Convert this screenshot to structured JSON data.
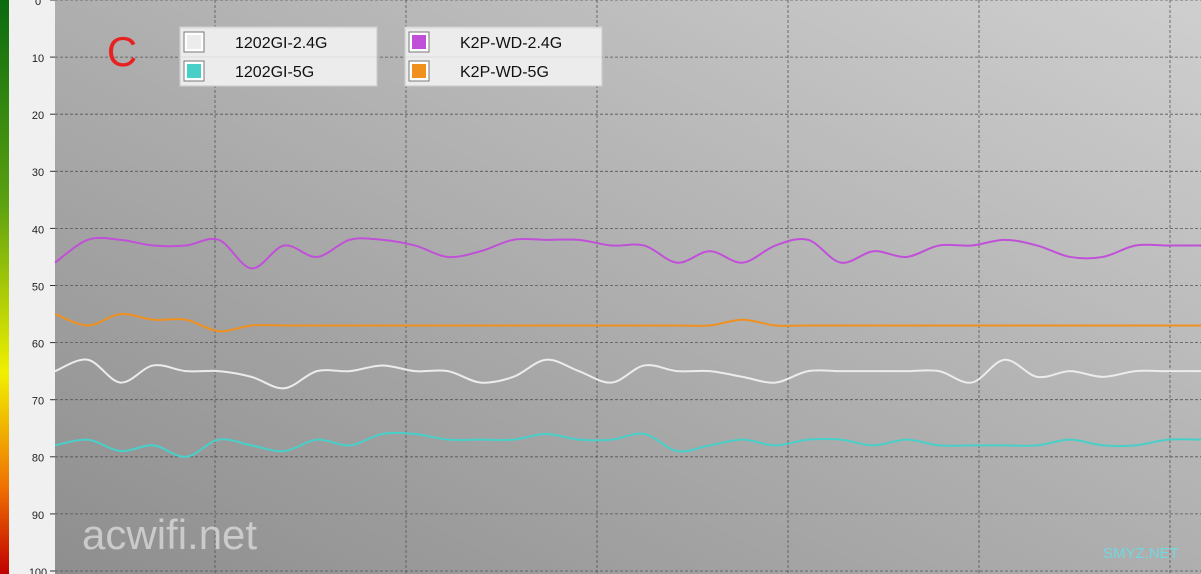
{
  "chart_data": {
    "type": "line",
    "annotations": [
      "C",
      "acwifi.net",
      "SMYZ.NET"
    ],
    "ylim": [
      0,
      100
    ],
    "y_inverted": true,
    "grid": true,
    "yticks": [
      0,
      10,
      20,
      30,
      40,
      50,
      60,
      70,
      80,
      90,
      100
    ],
    "series": [
      {
        "name": "1202GI-2.4G",
        "color": "#ececec",
        "values": [
          65,
          63,
          67,
          64,
          65,
          65,
          66,
          68,
          65,
          65,
          64,
          65,
          65,
          67,
          66,
          63,
          65,
          67,
          64,
          65,
          65,
          66,
          67,
          65,
          65,
          65,
          65,
          65,
          67,
          63,
          66,
          65,
          66,
          65,
          65,
          65
        ]
      },
      {
        "name": "1202GI-5G",
        "color": "#48d0c8",
        "values": [
          78,
          77,
          79,
          78,
          80,
          77,
          78,
          79,
          77,
          78,
          76,
          76,
          77,
          77,
          77,
          76,
          77,
          77,
          76,
          79,
          78,
          77,
          78,
          77,
          77,
          78,
          77,
          78,
          78,
          78,
          78,
          77,
          78,
          78,
          77,
          77
        ]
      },
      {
        "name": "K2P-WD-2.4G",
        "color": "#c050d8",
        "values": [
          46,
          42,
          42,
          43,
          43,
          42,
          47,
          43,
          45,
          42,
          42,
          43,
          45,
          44,
          42,
          42,
          42,
          43,
          43,
          46,
          44,
          46,
          43,
          42,
          46,
          44,
          45,
          43,
          43,
          42,
          43,
          45,
          45,
          43,
          43,
          43
        ]
      },
      {
        "name": "K2P-WD-5G",
        "color": "#f0901e",
        "values": [
          55,
          57,
          55,
          56,
          56,
          58,
          57,
          57,
          57,
          57,
          57,
          57,
          57,
          57,
          57,
          57,
          57,
          57,
          57,
          57,
          57,
          56,
          57,
          57,
          57,
          57,
          57,
          57,
          57,
          57,
          57,
          57,
          57,
          57,
          57,
          57
        ]
      }
    ]
  }
}
